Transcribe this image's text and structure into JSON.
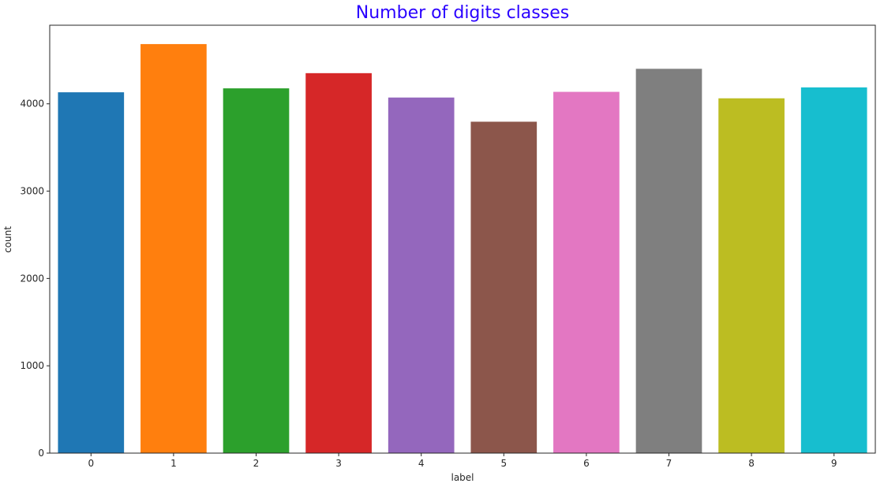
{
  "chart_data": {
    "type": "bar",
    "title": "Number of digits classes",
    "xlabel": "label",
    "ylabel": "count",
    "categories": [
      "0",
      "1",
      "2",
      "3",
      "4",
      "5",
      "6",
      "7",
      "8",
      "9"
    ],
    "values": [
      4132,
      4684,
      4177,
      4351,
      4072,
      3795,
      4137,
      4401,
      4063,
      4188
    ],
    "ylim": [
      0,
      4900
    ],
    "yticks": [
      0,
      1000,
      2000,
      3000,
      4000
    ],
    "grid": false,
    "colors": [
      "#1f77b4",
      "#ff7f0e",
      "#2ca02c",
      "#d62728",
      "#9467bd",
      "#8c564b",
      "#e377c2",
      "#7f7f7f",
      "#bcbd22",
      "#17becf"
    ],
    "title_color": "#2a00ff"
  }
}
